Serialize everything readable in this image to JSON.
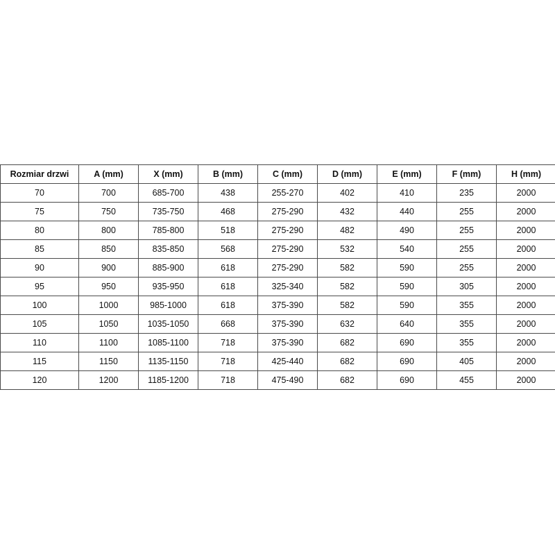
{
  "table": {
    "headers": [
      "Rozmiar drzwi",
      "A (mm)",
      "X (mm)",
      "B (mm)",
      "C (mm)",
      "D (mm)",
      "E (mm)",
      "F (mm)",
      "H (mm)"
    ],
    "rows": [
      [
        "70",
        "700",
        "685-700",
        "438",
        "255-270",
        "402",
        "410",
        "235",
        "2000"
      ],
      [
        "75",
        "750",
        "735-750",
        "468",
        "275-290",
        "432",
        "440",
        "255",
        "2000"
      ],
      [
        "80",
        "800",
        "785-800",
        "518",
        "275-290",
        "482",
        "490",
        "255",
        "2000"
      ],
      [
        "85",
        "850",
        "835-850",
        "568",
        "275-290",
        "532",
        "540",
        "255",
        "2000"
      ],
      [
        "90",
        "900",
        "885-900",
        "618",
        "275-290",
        "582",
        "590",
        "255",
        "2000"
      ],
      [
        "95",
        "950",
        "935-950",
        "618",
        "325-340",
        "582",
        "590",
        "305",
        "2000"
      ],
      [
        "100",
        "1000",
        "985-1000",
        "618",
        "375-390",
        "582",
        "590",
        "355",
        "2000"
      ],
      [
        "105",
        "1050",
        "1035-1050",
        "668",
        "375-390",
        "632",
        "640",
        "355",
        "2000"
      ],
      [
        "110",
        "1100",
        "1085-1100",
        "718",
        "375-390",
        "682",
        "690",
        "355",
        "2000"
      ],
      [
        "115",
        "1150",
        "1135-1150",
        "718",
        "425-440",
        "682",
        "690",
        "405",
        "2000"
      ],
      [
        "120",
        "1200",
        "1185-1200",
        "718",
        "475-490",
        "682",
        "690",
        "455",
        "2000"
      ]
    ]
  }
}
